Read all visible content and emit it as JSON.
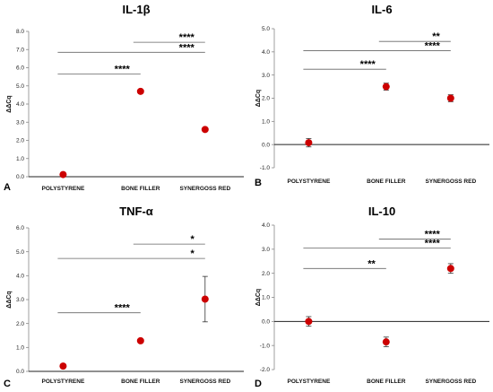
{
  "chart_data": [
    {
      "type": "scatter",
      "panel_label": "A",
      "title": "IL-1β",
      "ylabel": "ΔΔCq",
      "categories": [
        "POLYSTYRENE",
        "BONE FILLER",
        "SYNERGOSS RED"
      ],
      "ylim": [
        0,
        8
      ],
      "yticks": [
        "0.0",
        "1.0",
        "2.0",
        "3.0",
        "4.0",
        "5.0",
        "6.0",
        "7.0",
        "8.0"
      ],
      "values": [
        0.12,
        4.7,
        2.6
      ],
      "errors": [
        0.05,
        0.08,
        0.06
      ],
      "significance": [
        {
          "from": 0,
          "to": 1,
          "label": "****",
          "y": 5.65
        },
        {
          "from": 0,
          "to": 2,
          "label": "****",
          "y": 6.85
        },
        {
          "from": 1,
          "to": 2,
          "label": "****",
          "y": 7.4
        }
      ],
      "point_color": "#cc0000",
      "grid": false
    },
    {
      "type": "scatter",
      "panel_label": "B",
      "title": "IL-6",
      "ylabel": "ΔΔCq",
      "categories": [
        "POLYSTYRENE",
        "BONE FILLER",
        "SYNERGOSS RED"
      ],
      "ylim": [
        -1,
        5
      ],
      "yticks": [
        "-1.0",
        "0.0",
        "1.0",
        "2.0",
        "3.0",
        "4.0",
        "5.0"
      ],
      "values": [
        0.08,
        2.5,
        2.0
      ],
      "errors": [
        0.18,
        0.15,
        0.15
      ],
      "significance": [
        {
          "from": 0,
          "to": 1,
          "label": "****",
          "y": 3.25
        },
        {
          "from": 0,
          "to": 2,
          "label": "****",
          "y": 4.05
        },
        {
          "from": 1,
          "to": 2,
          "label": "**",
          "y": 4.45
        }
      ],
      "point_color": "#cc0000",
      "grid": false
    },
    {
      "type": "scatter",
      "panel_label": "C",
      "title": "TNF-α",
      "ylabel": "ΔΔCq",
      "categories": [
        "POLYSTYRENE",
        "BONE FILLER",
        "SYNERGOSS RED"
      ],
      "ylim": [
        0,
        6
      ],
      "yticks": [
        "0.0",
        "1.0",
        "2.0",
        "3.0",
        "4.0",
        "5.0",
        "6.0"
      ],
      "values": [
        0.22,
        1.28,
        3.02
      ],
      "errors": [
        0.03,
        0.05,
        0.95
      ],
      "significance": [
        {
          "from": 0,
          "to": 1,
          "label": "****",
          "y": 2.45
        },
        {
          "from": 0,
          "to": 2,
          "label": "*",
          "y": 4.72
        },
        {
          "from": 1,
          "to": 2,
          "label": "*",
          "y": 5.32
        }
      ],
      "point_color": "#cc0000",
      "grid": false
    },
    {
      "type": "scatter",
      "panel_label": "D",
      "title": "IL-10",
      "ylabel": "ΔΔCq",
      "categories": [
        "POLYSTYRENE",
        "BONE FILLER",
        "SYNERGOSS RED"
      ],
      "ylim": [
        -2,
        4
      ],
      "yticks": [
        "-2.0",
        "-1.0",
        "0.0",
        "1.0",
        "2.0",
        "3.0",
        "4.0"
      ],
      "values": [
        0.0,
        -0.85,
        2.2
      ],
      "errors": [
        0.2,
        0.2,
        0.2
      ],
      "significance": [
        {
          "from": 0,
          "to": 1,
          "label": "**",
          "y": 2.2
        },
        {
          "from": 0,
          "to": 2,
          "label": "****",
          "y": 3.05
        },
        {
          "from": 1,
          "to": 2,
          "label": "****",
          "y": 3.42
        }
      ],
      "point_color": "#cc0000",
      "grid": false
    }
  ]
}
